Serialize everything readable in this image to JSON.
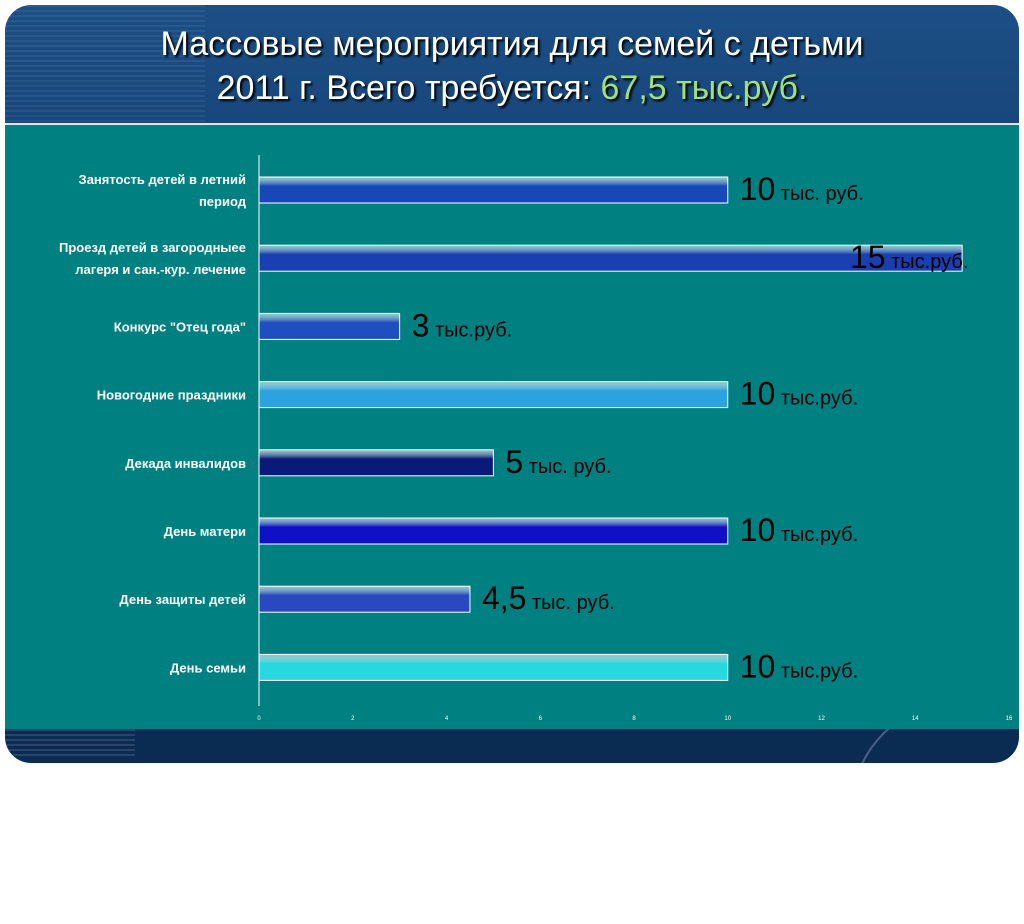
{
  "slide": {
    "title_line1": "Массовые мероприятия для семей с детьми",
    "title_line2_prefix": "2011 г. Всего требуется: ",
    "title_amount": "67,5 тыс.руб."
  },
  "colors": {
    "panel": "#008080",
    "title_amount": "#9fe07a",
    "slide_background": "#0f3766"
  },
  "chart_data": {
    "type": "bar",
    "orientation": "horizontal",
    "categories": [
      "Занятость детей в летний период",
      "Проезд детей в загородныее лагеря и сан.-кур. лечение",
      "Конкурс \"Отец года\"",
      "Новогодние праздники",
      "Декада инвалидов",
      "День матери",
      "День защиты детей",
      "День семьи"
    ],
    "category_label_lines": [
      [
        "Занятость детей в летний",
        "период"
      ],
      [
        "Проезд детей в загородныее",
        "лагеря и сан.-кур. лечение"
      ],
      [
        "Конкурс \"Отец года\""
      ],
      [
        "Новогодние праздники"
      ],
      [
        "Декада инвалидов"
      ],
      [
        "День матери"
      ],
      [
        "День защиты детей"
      ],
      [
        "День семьи"
      ]
    ],
    "values": [
      10,
      15,
      3,
      10,
      5,
      10,
      4.5,
      10
    ],
    "value_labels": [
      {
        "num": "10",
        "unit": " тыс. руб."
      },
      {
        "num": "15",
        "unit": " тыс.руб."
      },
      {
        "num": "3",
        "unit": " тыс.руб."
      },
      {
        "num": "10",
        "unit": " тыс.руб."
      },
      {
        "num": "5",
        "unit": " тыс. руб."
      },
      {
        "num": "10",
        "unit": " тыс.руб."
      },
      {
        "num": "4,5",
        "unit": " тыс. руб."
      },
      {
        "num": "10",
        "unit": " тыс.руб."
      }
    ],
    "bar_colors": [
      "#1848b8",
      "#1a3fb0",
      "#1f4ec0",
      "#2aa3e0",
      "#0a1a78",
      "#1010c8",
      "#2a48c0",
      "#28d8e0"
    ],
    "xlim": [
      0,
      16
    ],
    "xticks": [
      "0",
      "2",
      "4",
      "6",
      "8",
      "10",
      "12",
      "14",
      "16"
    ],
    "grid": false,
    "legend": "none"
  }
}
